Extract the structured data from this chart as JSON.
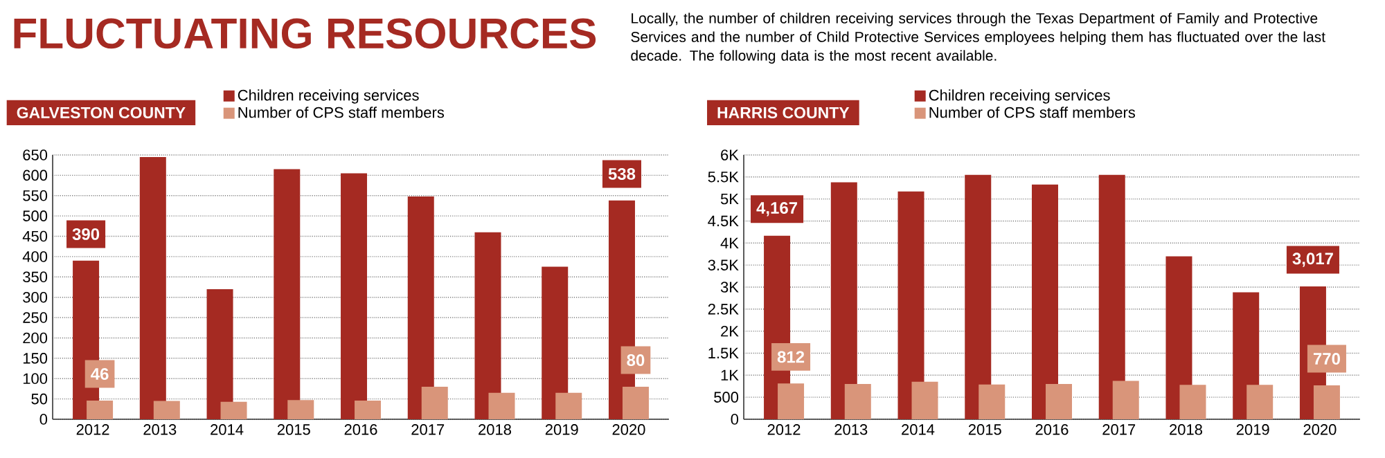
{
  "chart_data": [
    {
      "type": "bar",
      "title": "GALVESTON COUNTY",
      "annotations": [
        "FLUCTUATING RESOURCES",
        "Locally, the number of children receiving services through the Texas Department of Family and Protective Services and the number of Child Protective Services employees helping them has fluctuated over the last decade. The following data is the most recent available."
      ],
      "categories": [
        "2012",
        "2013",
        "2014",
        "2015",
        "2016",
        "2017",
        "2018",
        "2019",
        "2020"
      ],
      "series": [
        {
          "name": "Children receiving services",
          "color": "#a52a22",
          "values": [
            390,
            645,
            320,
            615,
            605,
            548,
            460,
            375,
            538
          ],
          "value_labels": [
            "390",
            null,
            null,
            null,
            null,
            null,
            null,
            null,
            "538"
          ]
        },
        {
          "name": "Number of CPS staff members",
          "color": "#d9957a",
          "values": [
            46,
            45,
            43,
            47,
            46,
            80,
            65,
            65,
            80
          ],
          "value_labels": [
            "46",
            null,
            null,
            null,
            null,
            null,
            null,
            null,
            "80"
          ]
        }
      ],
      "ylim": [
        0,
        650
      ],
      "yticks": [
        0,
        50,
        100,
        150,
        200,
        250,
        300,
        350,
        400,
        450,
        500,
        550,
        600,
        650
      ],
      "grid": "y",
      "legend": "top"
    },
    {
      "type": "bar",
      "title": "HARRIS COUNTY",
      "categories": [
        "2012",
        "2013",
        "2014",
        "2015",
        "2016",
        "2017",
        "2018",
        "2019",
        "2020"
      ],
      "series": [
        {
          "name": "Children receiving services",
          "color": "#a52a22",
          "values": [
            4167,
            5380,
            5170,
            5550,
            5330,
            5550,
            3700,
            2880,
            3017
          ],
          "value_labels": [
            "4,167",
            null,
            null,
            null,
            null,
            null,
            null,
            null,
            "3,017"
          ]
        },
        {
          "name": "Number of CPS staff members",
          "color": "#d9957a",
          "values": [
            812,
            800,
            850,
            790,
            800,
            870,
            780,
            780,
            770
          ],
          "value_labels": [
            "812",
            null,
            null,
            null,
            null,
            null,
            null,
            null,
            "770"
          ]
        }
      ],
      "ylim": [
        0,
        6000
      ],
      "yticks": [
        0,
        500,
        {
          "value": 1000,
          "label": "1K"
        },
        {
          "value": 1500,
          "label": "1.5K"
        },
        {
          "value": 2000,
          "label": "2K"
        },
        {
          "value": 2500,
          "label": "2.5K"
        },
        {
          "value": 3000,
          "label": "3K"
        },
        {
          "value": 3500,
          "label": "3.5K"
        },
        {
          "value": 4000,
          "label": "4K"
        },
        {
          "value": 4500,
          "label": "4.5K"
        },
        {
          "value": 5000,
          "label": "5K"
        },
        {
          "value": 5500,
          "label": "5.5K"
        },
        {
          "value": 6000,
          "label": "6K"
        }
      ],
      "grid": "y",
      "legend": "top"
    }
  ]
}
